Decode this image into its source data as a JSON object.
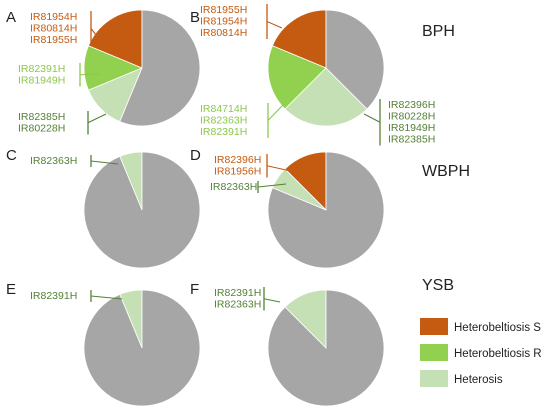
{
  "colors": {
    "heterobeltiosis_s": "#c55a11",
    "heterobeltiosis_r": "#92d050",
    "heterosis": "#c5e0b4",
    "none": "#a6a6a6",
    "label_s": "#c55a11",
    "label_r": "#8cc84b",
    "label_h": "#548235"
  },
  "rows": [
    {
      "label": "BPH"
    },
    {
      "label": "WBPH"
    },
    {
      "label": "YSB"
    }
  ],
  "legend": [
    {
      "label": "Heterobeltiosis S",
      "color": "#c55a11"
    },
    {
      "label": "Heterobeltiosis R",
      "color": "#92d050"
    },
    {
      "label": "Heterosis",
      "color": "#c5e0b4"
    }
  ],
  "chart_data": [
    {
      "type": "pie",
      "panel": "A",
      "slices": [
        {
          "category": "Heterobeltiosis S",
          "value": 3,
          "color": "#c55a11",
          "hybrids": [
            "IR81954H",
            "IR80814H",
            "IR81955H"
          ]
        },
        {
          "category": "Heterobeltiosis R",
          "value": 2,
          "color": "#92d050",
          "hybrids": [
            "IR82391H",
            "IR81949H"
          ]
        },
        {
          "category": "Heterosis",
          "value": 2,
          "color": "#c5e0b4",
          "hybrids": [
            "IR82385H",
            "IR80228H"
          ]
        },
        {
          "category": "",
          "value": 9,
          "color": "#a6a6a6",
          "hybrids": []
        }
      ]
    },
    {
      "type": "pie",
      "panel": "B",
      "slices": [
        {
          "category": "Heterobeltiosis S",
          "value": 3,
          "color": "#c55a11",
          "hybrids": [
            "IR81955H",
            "IR81954H",
            "IR80814H"
          ]
        },
        {
          "category": "Heterobeltiosis R",
          "value": 3,
          "color": "#92d050",
          "hybrids": [
            "IR84714H",
            "IR82363H",
            "IR82391H"
          ]
        },
        {
          "category": "Heterosis",
          "value": 4,
          "color": "#c5e0b4",
          "hybrids": [
            "IR82396H",
            "IR80228H",
            "IR81949H",
            "IR82385H"
          ]
        },
        {
          "category": "",
          "value": 6,
          "color": "#a6a6a6",
          "hybrids": []
        }
      ]
    },
    {
      "type": "pie",
      "panel": "C",
      "slices": [
        {
          "category": "Heterosis",
          "value": 1,
          "color": "#c5e0b4",
          "hybrids": [
            "IR82363H"
          ]
        },
        {
          "category": "",
          "value": 15,
          "color": "#a6a6a6",
          "hybrids": []
        }
      ]
    },
    {
      "type": "pie",
      "panel": "D",
      "slices": [
        {
          "category": "Heterobeltiosis S",
          "value": 2,
          "color": "#c55a11",
          "hybrids": [
            "IR82396H",
            "IR81956H"
          ]
        },
        {
          "category": "Heterosis",
          "value": 1,
          "color": "#c5e0b4",
          "hybrids": [
            "IR82363H"
          ]
        },
        {
          "category": "",
          "value": 13,
          "color": "#a6a6a6",
          "hybrids": []
        }
      ]
    },
    {
      "type": "pie",
      "panel": "E",
      "slices": [
        {
          "category": "Heterosis",
          "value": 1,
          "color": "#c5e0b4",
          "hybrids": [
            "IR82391H"
          ]
        },
        {
          "category": "",
          "value": 15,
          "color": "#a6a6a6",
          "hybrids": []
        }
      ]
    },
    {
      "type": "pie",
      "panel": "F",
      "slices": [
        {
          "category": "Heterosis",
          "value": 2,
          "color": "#c5e0b4",
          "hybrids": [
            "IR82391H",
            "IR82363H"
          ]
        },
        {
          "category": "",
          "value": 14,
          "color": "#a6a6a6",
          "hybrids": []
        }
      ]
    }
  ]
}
